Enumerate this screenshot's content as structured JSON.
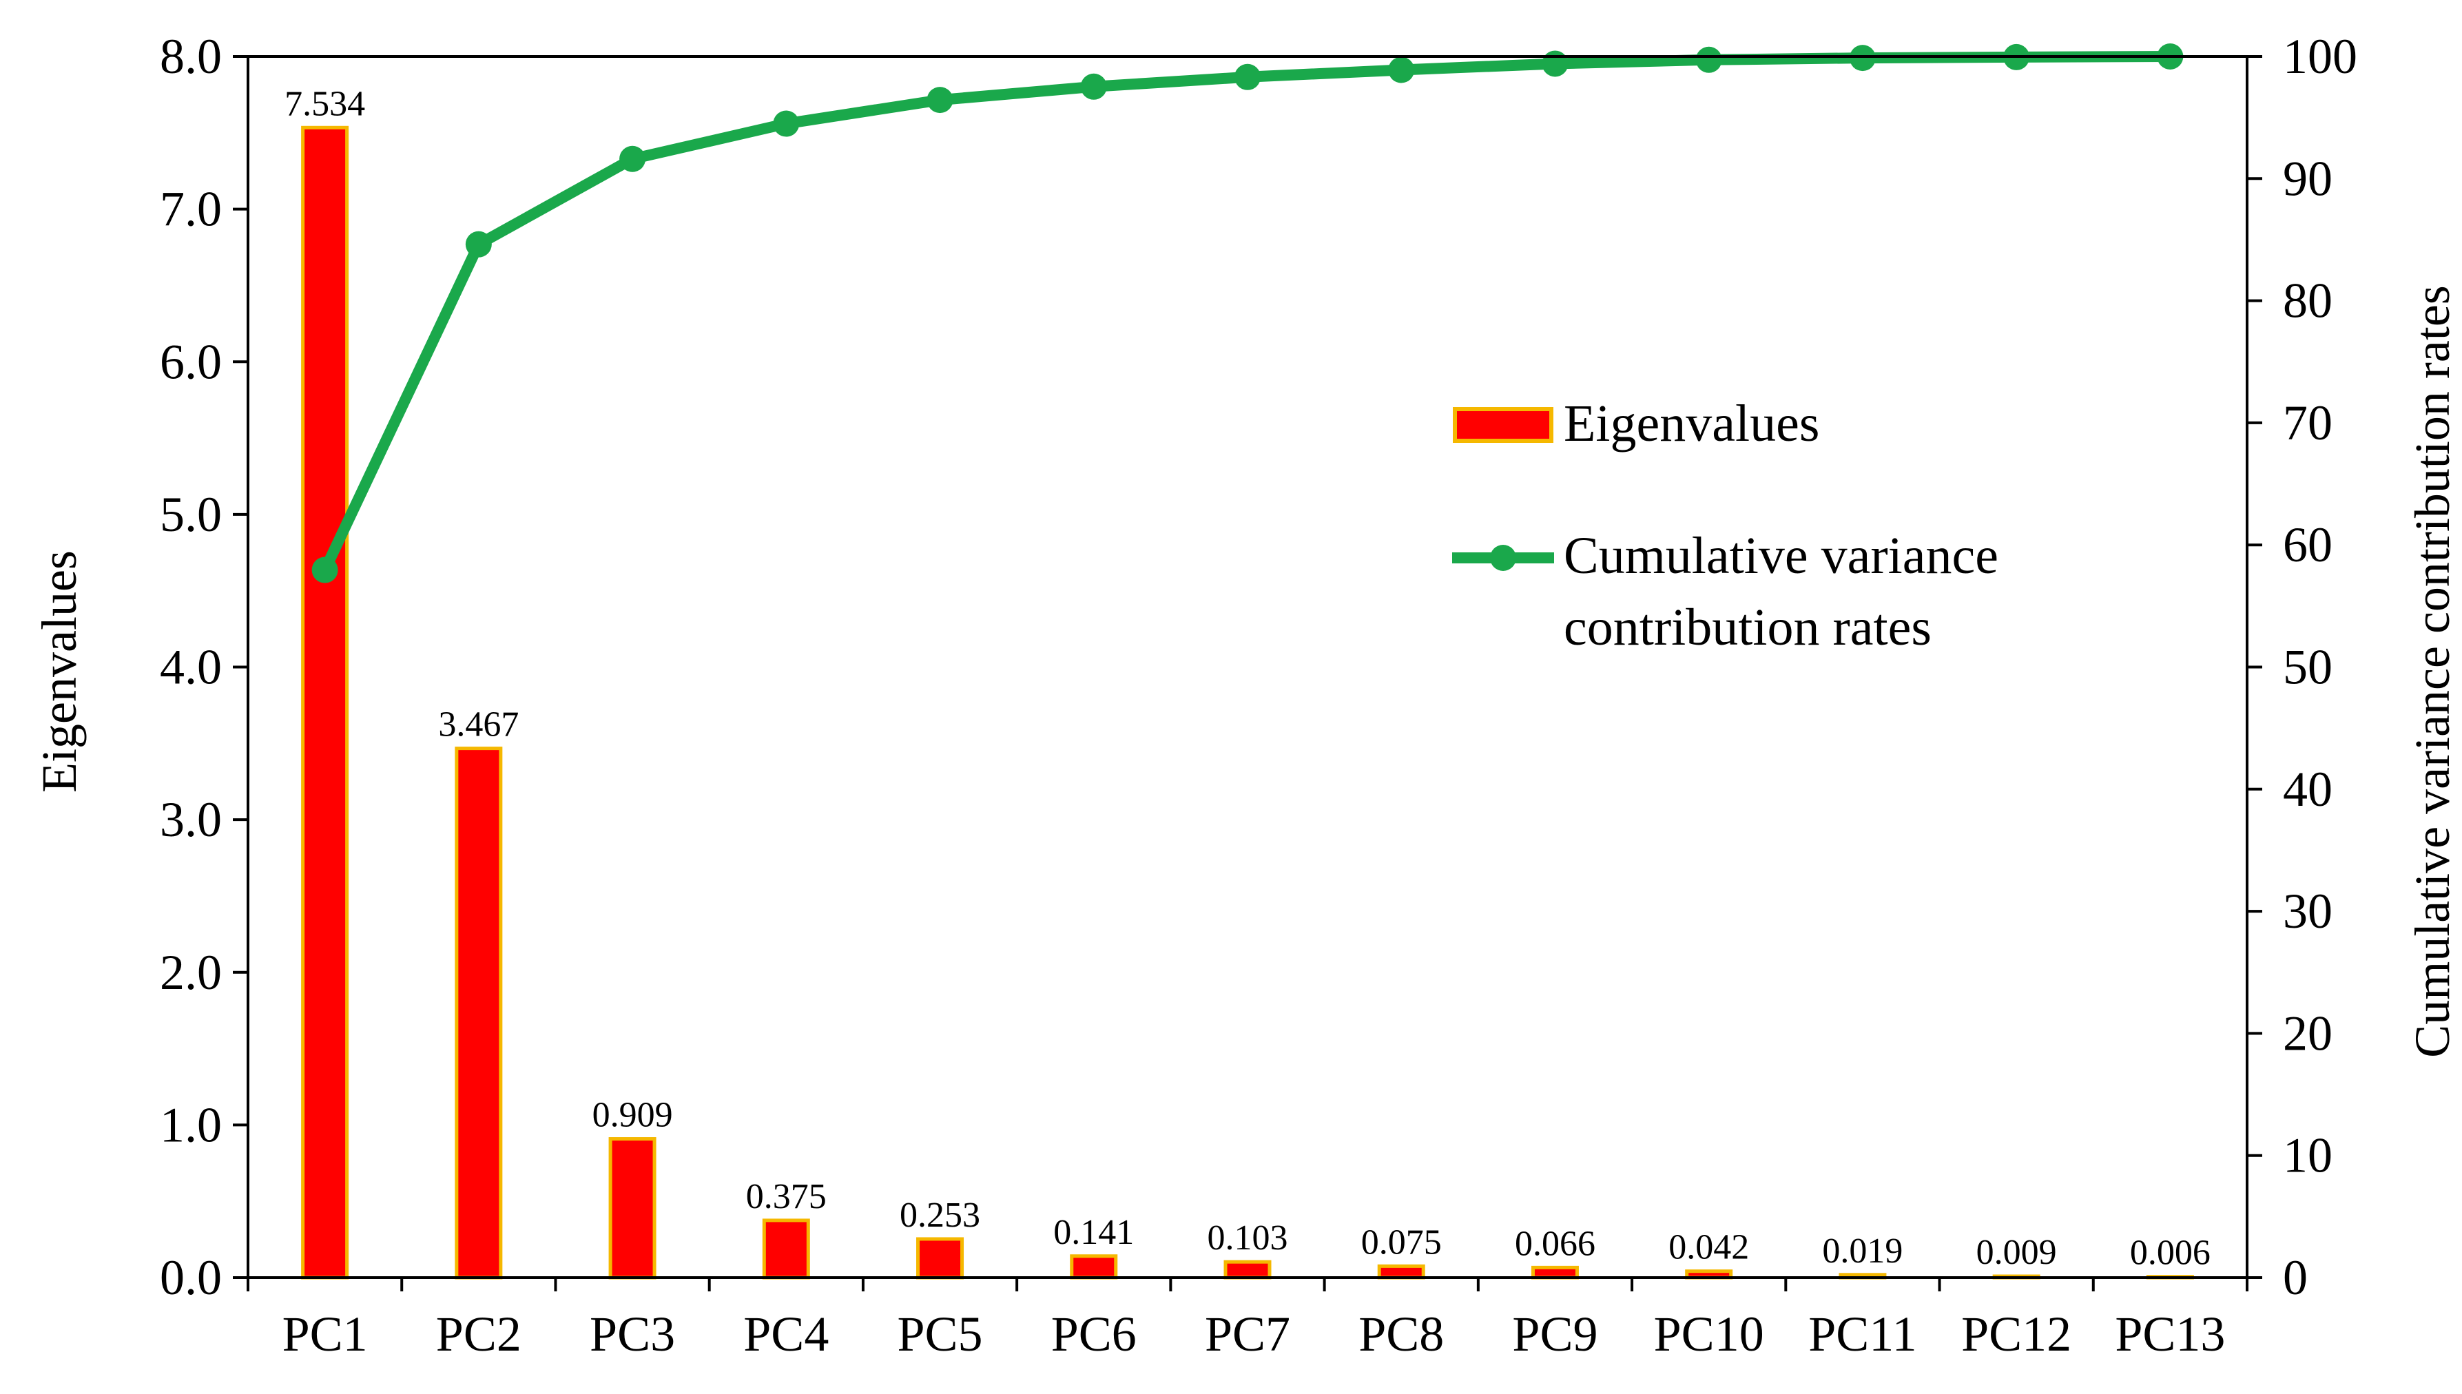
{
  "chart_data": {
    "type": "bar+line",
    "categories": [
      "PC1",
      "PC2",
      "PC3",
      "PC4",
      "PC5",
      "PC6",
      "PC7",
      "PC8",
      "PC9",
      "PC10",
      "PC11",
      "PC12",
      "PC13"
    ],
    "series": [
      {
        "name": "Eigenvalues",
        "type": "bar",
        "axis": "left",
        "values": [
          7.534,
          3.467,
          0.909,
          0.375,
          0.253,
          0.141,
          0.103,
          0.075,
          0.066,
          0.042,
          0.019,
          0.009,
          0.006
        ],
        "labels": [
          "7.534",
          "3.467",
          "0.909",
          "0.375",
          "0.253",
          "0.141",
          "0.103",
          "0.075",
          "0.066",
          "0.042",
          "0.019",
          "0.009",
          "0.006"
        ],
        "fill": "#ff0000",
        "stroke": "#f5b800"
      },
      {
        "name": "Cumulative variance contribution rates",
        "legend_lines": [
          "Cumulative variance",
          "contribution rates"
        ],
        "type": "line",
        "axis": "right",
        "values": [
          57.95,
          84.62,
          91.61,
          94.5,
          96.44,
          97.53,
          98.32,
          98.9,
          99.41,
          99.73,
          99.88,
          99.95,
          100.0
        ],
        "color": "#1aa84b"
      }
    ],
    "ylabel": "Eigenvalues",
    "ylabel_right": "Cumulative variance contribution rates",
    "ylim": [
      0,
      8
    ],
    "ylim_right": [
      0,
      100
    ],
    "yticks": [
      "0.0",
      "1.0",
      "2.0",
      "3.0",
      "4.0",
      "5.0",
      "6.0",
      "7.0",
      "8.0"
    ],
    "yticks_right": [
      "0",
      "10",
      "20",
      "30",
      "40",
      "50",
      "60",
      "70",
      "80",
      "90",
      "100"
    ],
    "legend_position": "center-right",
    "grid": false
  }
}
